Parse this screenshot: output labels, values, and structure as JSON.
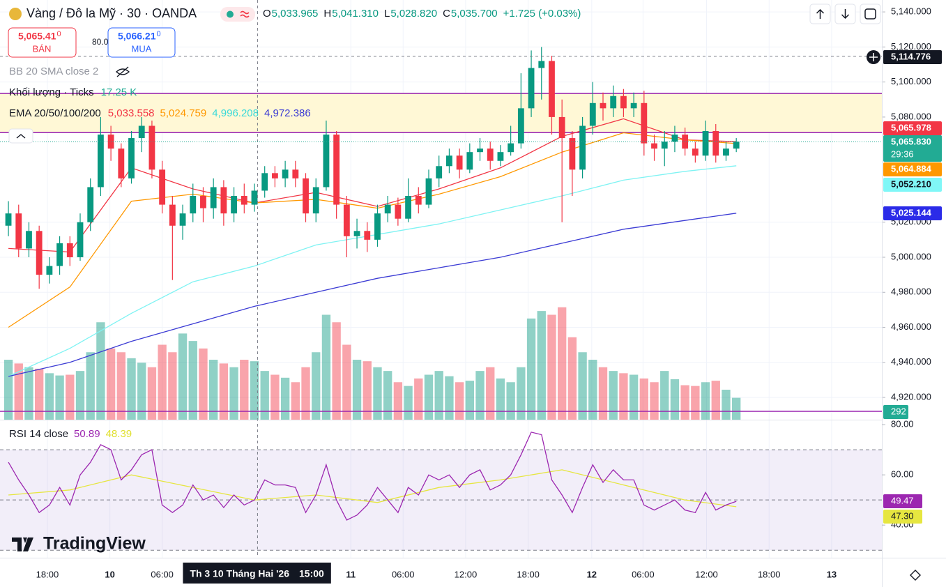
{
  "chart_data": {
    "type": "candlestick",
    "title": "Vàng / Đô la Mỹ · 30 · OANDA",
    "ohlc_legend": [
      {
        "key": "O",
        "value": {
          "value": 5033.965,
          "label": "5,033.965"
        }
      },
      {
        "key": "H",
        "value": {
          "value": 5041.31,
          "label": "5,041.310"
        }
      },
      {
        "key": "L",
        "value": {
          "value": 5028.82,
          "label": "5,028.820"
        }
      },
      {
        "key": "C",
        "value": {
          "value": 5035.7,
          "label": "5,035.700"
        }
      }
    ],
    "change": "+1.725 (+0.03%)",
    "sell": {
      "price": "5,065.41",
      "price_tail": "0",
      "label": "BÁN"
    },
    "spread": "80.0",
    "buy": {
      "price": "5,066.21",
      "price_tail": "0",
      "label": "MUA"
    },
    "bb_label": "BB 20 SMA close 2",
    "volume_label": "Khối lượng · Ticks",
    "volume_legend": "17.25 K",
    "ema_label": "EMA 20/50/100/200",
    "up_color": "#089981",
    "down_color": "#f23645",
    "xlim": [
      -0.82,
      85.2
    ],
    "xticks": [
      {
        "value": 3.8,
        "label": "18:00"
      },
      {
        "value": 9.9,
        "label": "10"
      },
      {
        "value": 15,
        "label": "06:00"
      },
      {
        "value": 33.4,
        "label": "11"
      },
      {
        "value": 38.5,
        "label": "06:00"
      },
      {
        "value": 44.6,
        "label": "12:00"
      },
      {
        "value": 50.7,
        "label": "18:00"
      },
      {
        "value": 56.9,
        "label": "12"
      },
      {
        "value": 61.9,
        "label": "06:00"
      },
      {
        "value": 68.1,
        "label": "12:00"
      },
      {
        "value": 74.2,
        "label": "18:00"
      },
      {
        "value": 80.3,
        "label": "13"
      }
    ],
    "ylim": [
      4907.3,
      5146.8
    ],
    "yticks": [
      {
        "value": 5140,
        "label": "5,140.000"
      },
      {
        "value": 5120,
        "label": "5,120.000"
      },
      {
        "value": 5100,
        "label": "5,100.000"
      },
      {
        "value": 5080,
        "label": "5,080.000"
      },
      {
        "value": 5020,
        "label": "5,020.000"
      },
      {
        "value": 5000,
        "label": "5,000.000"
      },
      {
        "value": 4980,
        "label": "4,980.000"
      },
      {
        "value": 4960,
        "label": "4,960.000"
      },
      {
        "value": 4940,
        "label": "4,940.000"
      },
      {
        "value": 4920,
        "label": "4,920.000"
      }
    ],
    "open": [
      5018,
      5025,
      5005,
      5015,
      4990,
      4995,
      5008,
      5000,
      5020,
      5040,
      5070,
      5062,
      5045,
      5068,
      5075,
      5050,
      5030,
      5018,
      5025,
      5035,
      5028,
      5040,
      5025,
      5035,
      5030,
      5038,
      5048,
      5045,
      5050,
      5045,
      5025,
      5040,
      5070,
      5030,
      5012,
      5015,
      5010,
      5025,
      5030,
      5022,
      5035,
      5030,
      5045,
      5052,
      5058,
      5050,
      5060,
      5062,
      5055,
      5060,
      5065,
      5085,
      5108,
      5112,
      5080,
      5068,
      5050,
      5075,
      5088,
      5085,
      5092,
      5085,
      5088,
      5065,
      5062,
      5066,
      5070,
      5062,
      5058,
      5072,
      5058,
      5062
    ],
    "high": [
      5032,
      5030,
      5020,
      5018,
      5000,
      5012,
      5012,
      5025,
      5045,
      5080,
      5075,
      5065,
      5072,
      5080,
      5078,
      5055,
      5035,
      5030,
      5042,
      5040,
      5045,
      5044,
      5040,
      5042,
      5042,
      5052,
      5052,
      5055,
      5055,
      5048,
      5045,
      5078,
      5072,
      5035,
      5022,
      5020,
      5030,
      5035,
      5034,
      5045,
      5040,
      5050,
      5058,
      5062,
      5062,
      5065,
      5068,
      5066,
      5064,
      5075,
      5105,
      5118,
      5120,
      5115,
      5090,
      5072,
      5080,
      5100,
      5094,
      5098,
      5096,
      5094,
      5095,
      5070,
      5072,
      5075,
      5074,
      5066,
      5078,
      5076,
      5066,
      5068
    ],
    "low": [
      5012,
      5000,
      5000,
      4982,
      4985,
      4990,
      4995,
      4998,
      5015,
      5035,
      5055,
      5040,
      5042,
      5060,
      5045,
      5025,
      4987,
      5010,
      5020,
      5020,
      5022,
      5018,
      5020,
      5025,
      5026,
      5034,
      5040,
      5040,
      5040,
      5020,
      5020,
      5038,
      5022,
      5000,
      5005,
      5003,
      5006,
      5020,
      5018,
      5020,
      5025,
      5028,
      5040,
      5048,
      5045,
      5048,
      5055,
      5050,
      5052,
      5058,
      5062,
      5080,
      5090,
      5070,
      5020,
      5035,
      5045,
      5070,
      5078,
      5080,
      5080,
      5080,
      5058,
      5055,
      5052,
      5060,
      5058,
      5054,
      5055,
      5054,
      5055,
      5060
    ],
    "close": [
      5025,
      5005,
      5015,
      4990,
      4995,
      5008,
      5000,
      5020,
      5040,
      5070,
      5062,
      5045,
      5068,
      5075,
      5050,
      5030,
      5018,
      5025,
      5035,
      5028,
      5040,
      5025,
      5035,
      5030,
      5038,
      5048,
      5045,
      5050,
      5045,
      5025,
      5040,
      5070,
      5030,
      5012,
      5015,
      5010,
      5025,
      5030,
      5022,
      5035,
      5030,
      5045,
      5052,
      5058,
      5050,
      5060,
      5062,
      5055,
      5060,
      5065,
      5085,
      5108,
      5112,
      5080,
      5068,
      5050,
      5075,
      5088,
      5085,
      5092,
      5085,
      5088,
      5065,
      5062,
      5066,
      5070,
      5062,
      5058,
      5072,
      5058,
      5062,
      5066
    ],
    "volume": {
      "values": [
        800,
        750,
        700,
        680,
        620,
        590,
        600,
        650,
        900,
        1300,
        950,
        900,
        820,
        760,
        700,
        1000,
        900,
        1150,
        1050,
        950,
        800,
        750,
        700,
        800,
        780,
        650,
        600,
        560,
        500,
        700,
        900,
        1400,
        1300,
        1000,
        800,
        780,
        700,
        650,
        500,
        450,
        550,
        600,
        650,
        580,
        500,
        520,
        650,
        700,
        550,
        500,
        700,
        1350,
        1450,
        1400,
        1500,
        1100,
        900,
        800,
        700,
        650,
        620,
        600,
        550,
        500,
        650,
        540,
        460,
        450,
        500,
        520,
        400,
        292
      ],
      "ylim": [
        0,
        5600
      ],
      "last": 292,
      "line_color": "#9c27b0"
    },
    "bands": [
      {
        "from": 5071.2,
        "to": 5093.5,
        "color": "#fff8d6",
        "line_color": "#9c27b0"
      }
    ],
    "ema": [
      {
        "color": "#f23645",
        "x": [
          0,
          6,
          12,
          18,
          24,
          30,
          36,
          42,
          48,
          54,
          60,
          66,
          71
        ],
        "values": [
          5005,
          5003,
          5051,
          5039,
          5031,
          5037,
          5029,
          5039,
          5051,
          5069,
          5079,
          5067,
          5065.978
        ],
        "legend": {
          "value": 5033.558,
          "label": "5,033.558"
        }
      },
      {
        "color": "#ff9800",
        "x": [
          0,
          6,
          12,
          18,
          24,
          30,
          36,
          42,
          48,
          54,
          60,
          66,
          71
        ],
        "values": [
          4960,
          4983,
          5032,
          5036,
          5031,
          5033,
          5028,
          5036,
          5046,
          5060,
          5071,
          5067,
          5064.884
        ],
        "legend": {
          "value": 5024.759,
          "label": "5,024.759"
        }
      },
      {
        "color": "#7ff3f3",
        "x": [
          0,
          6,
          12,
          18,
          24,
          30,
          36,
          42,
          48,
          54,
          60,
          66,
          71
        ],
        "values": [
          4932,
          4948,
          4968,
          4986,
          4995,
          5007,
          5013,
          5019,
          5027,
          5035,
          5044,
          5049,
          5052.21
        ],
        "legend": {
          "value": 4996.208,
          "label": "4,996.208"
        }
      },
      {
        "color": "#3b3bd4",
        "x": [
          0,
          6,
          12,
          18,
          24,
          30,
          36,
          42,
          48,
          54,
          60,
          66,
          71
        ],
        "values": [
          4932,
          4940,
          4952,
          4962,
          4972,
          4980,
          4988,
          4994,
          5000,
          5008,
          5016,
          5021,
          5025.144
        ],
        "legend": {
          "value": 4972.386,
          "label": "4,972.386"
        }
      }
    ],
    "price_labels": [
      {
        "value": 5114.776,
        "label": "5,114.776",
        "color": "#131722"
      },
      {
        "value": 5065.978,
        "label": "5,065.978",
        "color": "#f23645"
      },
      {
        "value": 5065.83,
        "label": "5,065.830",
        "color": "#22ab94"
      },
      {
        "value": 5064.884,
        "label": "5,064.884",
        "color": "#ff9800"
      },
      {
        "value": 5052.21,
        "label": "5,052.210",
        "color": "#80f7f7"
      },
      {
        "value": 5025.144,
        "label": "5,025.144",
        "color": "#2b2be8"
      }
    ],
    "countdown": "29:36",
    "crosshair": {
      "x": 24.3,
      "date": "Th 3 10 Tháng Hai '26",
      "time": "15:00"
    },
    "rsi": {
      "label": "RSI 14 close",
      "legend": [
        {
          "value": 50.89,
          "color": "#9c27b0"
        },
        {
          "value": 48.39,
          "color": "#e0e030"
        }
      ],
      "ylim": [
        27,
        81.7
      ],
      "yticks": [
        {
          "value": 80,
          "label": "80.00"
        },
        {
          "value": 60,
          "label": "60.00"
        },
        {
          "value": 40,
          "label": "40.00"
        }
      ],
      "band": [
        30,
        70
      ],
      "levels": [
        70,
        50,
        30
      ],
      "color": "#9c27b0",
      "values": [
        65,
        58,
        52,
        45,
        48,
        55,
        48,
        60,
        65,
        72,
        70,
        58,
        62,
        68,
        70,
        48,
        45,
        48,
        56,
        50,
        52,
        47,
        52,
        48,
        50,
        58,
        56,
        56,
        55,
        45,
        52,
        64,
        50,
        42,
        44,
        48,
        55,
        50,
        45,
        55,
        52,
        60,
        58,
        60,
        55,
        60,
        62,
        54,
        56,
        60,
        68,
        77,
        76,
        58,
        52,
        45,
        55,
        64,
        57,
        62,
        58,
        58,
        48,
        46,
        48,
        50,
        46,
        45,
        53,
        46,
        48,
        49.47
      ],
      "ma": {
        "color": "#e6e640",
        "x": [
          0,
          6,
          12,
          18,
          24,
          30,
          36,
          42,
          48,
          54,
          60,
          66,
          71
        ],
        "values": [
          52,
          54,
          60,
          55,
          50,
          52,
          49,
          55,
          58,
          62,
          56,
          50,
          47.3
        ],
        "last_label": {
          "value": 47.3,
          "label": "47.30"
        }
      }
    },
    "watermark": "TradingView"
  }
}
